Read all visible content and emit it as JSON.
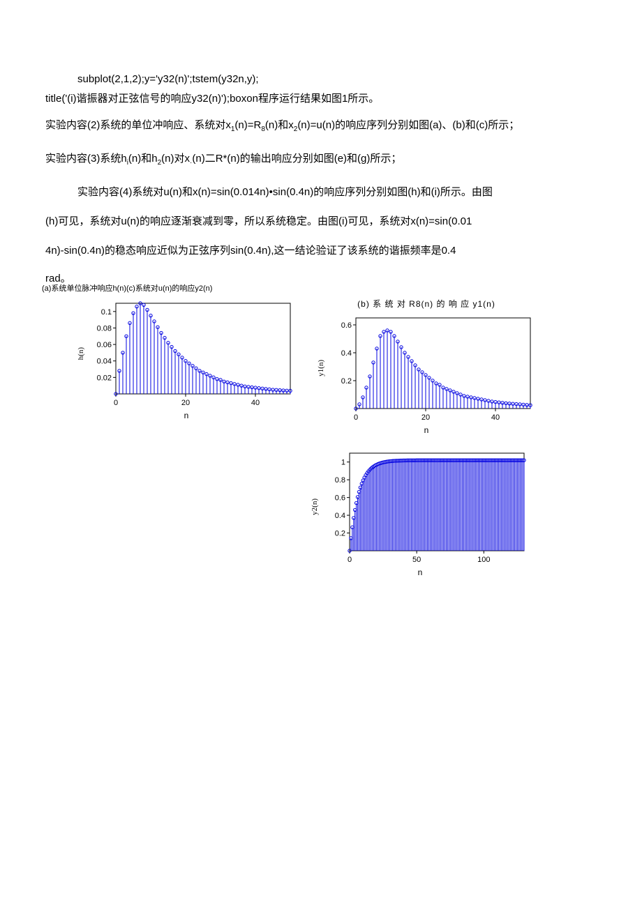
{
  "code": {
    "line1": "subplot(2,1,2);y='y32(n)';tstem(y32n,y);",
    "line2": "title('(i)谐振器对正弦信号的响应y32(n)');boxon程序运行结果如图1所示。"
  },
  "para1_a": "实验内容(2)系统的单位冲响应、系统对x",
  "para1_b": "(n)=R",
  "para1_c": "(n)和x",
  "para1_d": "(n)=u(n)的响应序列分别如图(a)、(b)和(c)所示；",
  "para2_a": "实验内容(3)系统h",
  "para2_b": "(n)和h",
  "para2_c": "(n)对x",
  "para2_d": "(n)二R*(n)的输出响应分别如图(e)和(g)所示；",
  "para3": "实验内容(4)系统对u(n)和x(n)=sin(0.014n)•sin(0.4n)的响应序列分别如图(h)和(i)所示。由图",
  "para4": "(h)可见，系统对u(n)的响应逐渐衰减到零，所以系统稳定。由图(i)可见，系统对x(n)=sin(0.01",
  "para5": "4n)-sin(0.4n)的稳态响应近似为正弦序列sin(0.4n),这一结论验证了该系统的谐振频率是0.4",
  "rad": "rad。",
  "caption_a": "(a)系统单位脉冲响应h(n)(c)系统对u(n)的响应y2(n)",
  "chartA": {
    "title": "",
    "ylabel": "h(n)",
    "xlabel": "n",
    "xlim": [
      0,
      50
    ],
    "ylim": [
      0,
      0.11
    ],
    "yticks": [
      0.02,
      0.04,
      0.06,
      0.08,
      0.1
    ],
    "xticks": [
      0,
      20,
      40
    ],
    "color": "#0000e0",
    "box": "#000000",
    "values": [
      0.0,
      0.028,
      0.05,
      0.07,
      0.086,
      0.098,
      0.106,
      0.11,
      0.108,
      0.102,
      0.095,
      0.088,
      0.081,
      0.074,
      0.068,
      0.062,
      0.057,
      0.052,
      0.048,
      0.044,
      0.04,
      0.037,
      0.034,
      0.031,
      0.028,
      0.026,
      0.024,
      0.022,
      0.02,
      0.018,
      0.017,
      0.015,
      0.014,
      0.013,
      0.012,
      0.011,
      0.01,
      0.009,
      0.0085,
      0.008,
      0.0075,
      0.007,
      0.0065,
      0.006,
      0.0055,
      0.005,
      0.0048,
      0.0045,
      0.0042,
      0.004,
      0.0038
    ]
  },
  "chartB": {
    "title": "(b) 系 统 对 R8(n) 的 响 应 y1(n)",
    "ylabel": "y1(n)",
    "xlabel": "n",
    "xlim": [
      0,
      50
    ],
    "ylim": [
      0,
      0.65
    ],
    "yticks": [
      0.2,
      0.4,
      0.6
    ],
    "xticks": [
      0,
      20,
      40
    ],
    "color": "#0000e0",
    "box": "#000000",
    "values": [
      0.0,
      0.03,
      0.08,
      0.15,
      0.23,
      0.33,
      0.43,
      0.52,
      0.55,
      0.56,
      0.55,
      0.52,
      0.48,
      0.44,
      0.4,
      0.37,
      0.34,
      0.31,
      0.28,
      0.26,
      0.24,
      0.22,
      0.2,
      0.18,
      0.17,
      0.15,
      0.14,
      0.13,
      0.12,
      0.11,
      0.1,
      0.09,
      0.085,
      0.08,
      0.075,
      0.07,
      0.065,
      0.06,
      0.055,
      0.05,
      0.047,
      0.044,
      0.041,
      0.038,
      0.036,
      0.034,
      0.032,
      0.03,
      0.028,
      0.026,
      0.024
    ]
  },
  "chartC": {
    "title": "",
    "ylabel": "y2(n)",
    "xlabel": "n",
    "xlim": [
      0,
      130
    ],
    "ylim": [
      0,
      1.1
    ],
    "yticks": [
      0.2,
      0.4,
      0.6,
      0.8,
      1
    ],
    "xticks": [
      0,
      50,
      100
    ],
    "color": "#0000e0",
    "box": "#000000",
    "n_points": 131
  }
}
